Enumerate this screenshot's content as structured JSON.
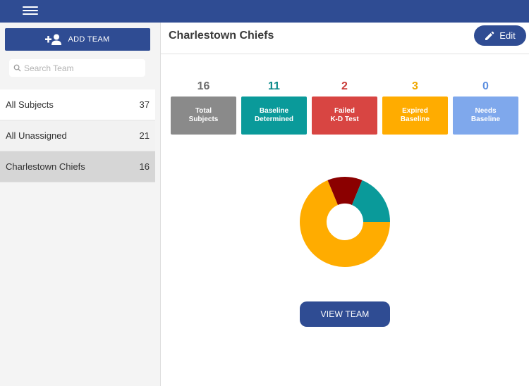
{
  "topbar": {
    "menu_icon": "hamburger-menu-icon"
  },
  "sidebar": {
    "add_team_label": "ADD TEAM",
    "add_team_icon": "add-person-icon",
    "search_placeholder": "Search Team",
    "search_value": "",
    "items": [
      {
        "label": "All Subjects",
        "count": "37"
      },
      {
        "label": "All Unassigned",
        "count": "21"
      },
      {
        "label": "Charlestown Chiefs",
        "count": "16"
      }
    ]
  },
  "header": {
    "title": "Charlestown Chiefs",
    "edit_label": "Edit",
    "edit_icon": "pencil-icon"
  },
  "stats": [
    {
      "count": "16",
      "label": "Total\nSubjects",
      "color": "#8a8a8a",
      "count_color": "#6d6d6d"
    },
    {
      "count": "11",
      "label": "Baseline\nDetermined",
      "color": "#0a9a9a",
      "count_color": "#0a8a8a"
    },
    {
      "count": "2",
      "label": "Failed\nK-D Test",
      "color": "#d84542",
      "count_color": "#c93b38"
    },
    {
      "count": "3",
      "label": "Expired\nBaseline",
      "color": "#ffac00",
      "count_color": "#f0a800"
    },
    {
      "count": "0",
      "label": "Needs\nBaseline",
      "color": "#7fa8ec",
      "count_color": "#5d8fe0"
    }
  ],
  "chart_data": {
    "type": "pie",
    "donut": true,
    "values": [
      11,
      2,
      3
    ],
    "colors": [
      "#ffac00",
      "#8b0000",
      "#0a9a9a"
    ]
  },
  "main": {
    "view_team_label": "VIEW TEAM"
  }
}
